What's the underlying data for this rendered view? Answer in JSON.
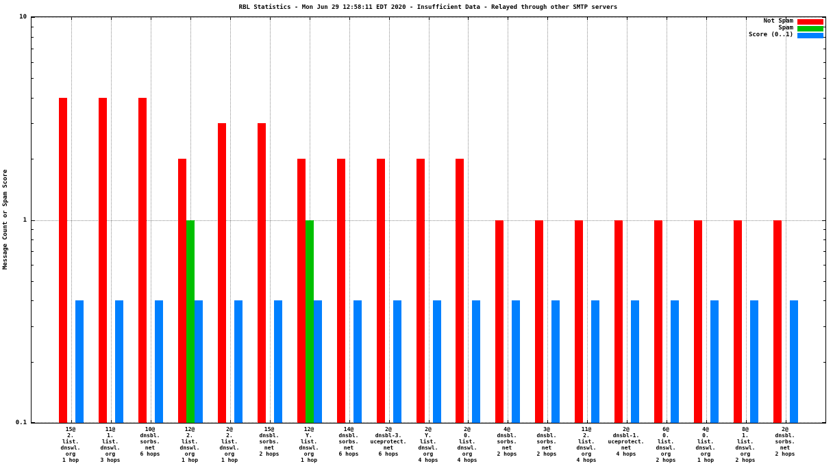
{
  "chart_data": {
    "type": "bar",
    "title": "RBL Statistics - Mon Jun 29 12:58:11 EDT 2020 - Insufficient Data - Relayed through other SMTP servers",
    "ylabel": "Message Count or Spam Score",
    "xlabel": "",
    "yscale": "log",
    "ylim": [
      0.1,
      10
    ],
    "grid": true,
    "legend_position": "top-right",
    "yticks": [
      {
        "label": "10",
        "value": 10
      },
      {
        "label": "1",
        "value": 1
      },
      {
        "label": "0.1",
        "value": 0.1
      }
    ],
    "categories": [
      [
        "15@",
        "2.",
        "list.",
        "dnswl.",
        "org",
        "1 hop"
      ],
      [
        "11@",
        "1.",
        "list.",
        "dnswl.",
        "org",
        "3 hops"
      ],
      [
        "10@",
        "dnsbl.",
        "sorbs.",
        "net",
        "6 hops"
      ],
      [
        "12@",
        "2.",
        "list.",
        "dnswl.",
        "org",
        "1 hop"
      ],
      [
        "2@",
        "2.",
        "list.",
        "dnswl.",
        "org",
        "1 hop"
      ],
      [
        "15@",
        "dnsbl.",
        "sorbs.",
        "net",
        "2 hops"
      ],
      [
        "12@",
        "Y.",
        "list.",
        "dnswl.",
        "org",
        "1 hop"
      ],
      [
        "14@",
        "dnsbl.",
        "sorbs.",
        "net",
        "6 hops"
      ],
      [
        "2@",
        "dnsbl-3.",
        "uceprotect.",
        "net",
        "6 hops"
      ],
      [
        "2@",
        "Y.",
        "list.",
        "dnswl.",
        "org",
        "4 hops"
      ],
      [
        "2@",
        "0.",
        "list.",
        "dnswl.",
        "org",
        "4 hops"
      ],
      [
        "4@",
        "dnsbl.",
        "sorbs.",
        "net",
        "2 hops"
      ],
      [
        "3@",
        "dnsbl.",
        "sorbs.",
        "net",
        "2 hops"
      ],
      [
        "11@",
        "2.",
        "list.",
        "dnswl.",
        "org",
        "4 hops"
      ],
      [
        "2@",
        "dnsbl-1.",
        "uceprotect.",
        "net",
        "4 hops"
      ],
      [
        "6@",
        "0.",
        "list.",
        "dnswl.",
        "org",
        "2 hops"
      ],
      [
        "4@",
        "0.",
        "list.",
        "dnswl.",
        "org",
        "1 hop"
      ],
      [
        "8@",
        "1.",
        "list.",
        "dnswl.",
        "org",
        "2 hops"
      ],
      [
        "2@",
        "dnsbl.",
        "sorbs.",
        "net",
        "2 hops"
      ]
    ],
    "series": [
      {
        "name": "Not Spam",
        "color": "#ff0000",
        "values": [
          4,
          4,
          4,
          2,
          3,
          3,
          2,
          2,
          2,
          2,
          2,
          1,
          1,
          1,
          1,
          1,
          1,
          1,
          1
        ]
      },
      {
        "name": "Spam",
        "color": "#00c000",
        "values": [
          null,
          null,
          null,
          1,
          null,
          null,
          1,
          null,
          null,
          null,
          null,
          null,
          null,
          null,
          null,
          null,
          null,
          null,
          null
        ]
      },
      {
        "name": "Score (0..1)",
        "color": "#0080ff",
        "values": [
          0.4,
          0.4,
          0.4,
          0.4,
          0.4,
          0.4,
          0.4,
          0.4,
          0.4,
          0.4,
          0.4,
          0.4,
          0.4,
          0.4,
          0.4,
          0.4,
          0.4,
          0.4,
          0.4
        ]
      }
    ]
  }
}
